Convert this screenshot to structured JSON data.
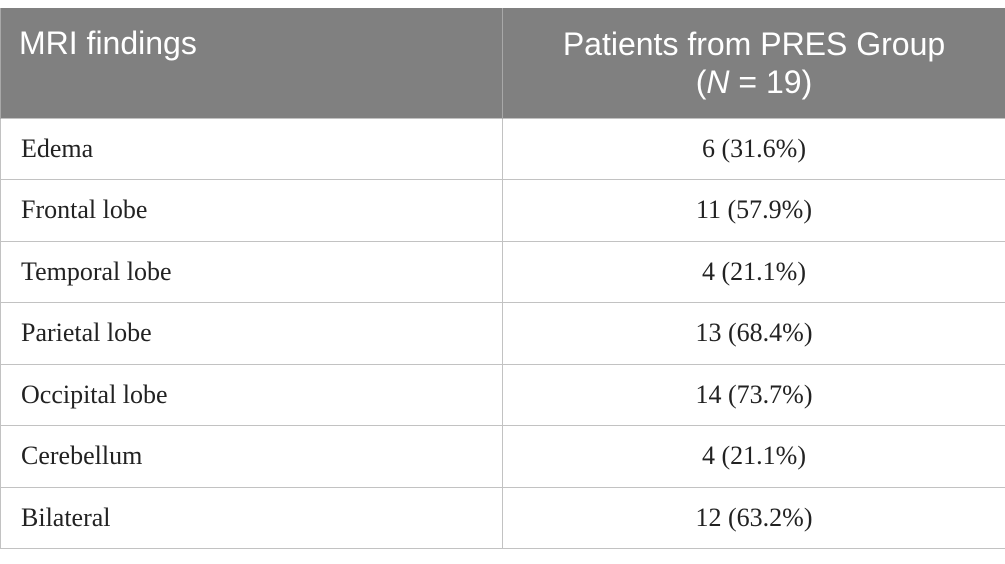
{
  "table": {
    "header": {
      "col1": "MRI findings",
      "col2_line1": "Patients from PRES Group",
      "col2_open": "(",
      "col2_n": "N",
      "col2_rest": " = 19)"
    },
    "rows": [
      {
        "finding": "Edema",
        "value": "6 (31.6%)"
      },
      {
        "finding": "Frontal lobe",
        "value": "11 (57.9%)"
      },
      {
        "finding": "Temporal lobe",
        "value": "4 (21.1%)"
      },
      {
        "finding": "Parietal lobe",
        "value": "13 (68.4%)"
      },
      {
        "finding": "Occipital lobe",
        "value": "14 (73.7%)"
      },
      {
        "finding": "Cerebellum",
        "value": "4 (21.1%)"
      },
      {
        "finding": "Bilateral",
        "value": "12 (63.2%)"
      }
    ]
  }
}
